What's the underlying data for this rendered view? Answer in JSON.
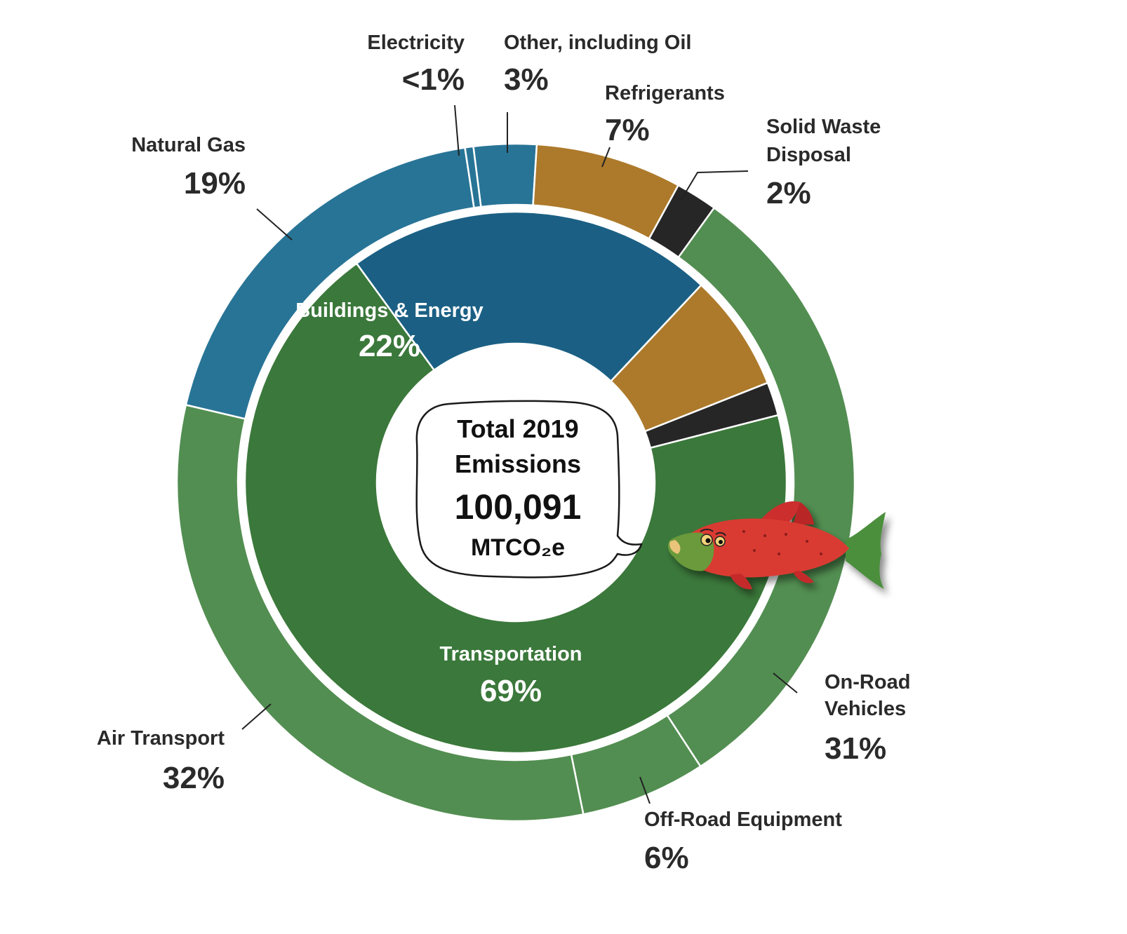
{
  "chart_data": {
    "type": "pie",
    "center_label": {
      "line1": "Total 2019",
      "line2": "Emissions",
      "value": "100,091",
      "unit": "MTCO₂e"
    },
    "inner_ring": [
      {
        "name": "Buildings & Energy",
        "value": 22,
        "label": "22%",
        "color": "#1b6084"
      },
      {
        "name": "",
        "value": 7,
        "label": "",
        "color": "#ad7a2b"
      },
      {
        "name": "",
        "value": 2,
        "label": "",
        "color": "#262626"
      },
      {
        "name": "Transportation",
        "value": 69,
        "label": "69%",
        "color": "#3b783b"
      }
    ],
    "outer_ring": [
      {
        "name": "Other, including Oil",
        "value": 3,
        "label": "3%",
        "color": "#287496"
      },
      {
        "name": "Refrigerants",
        "value": 7,
        "label": "7%",
        "color": "#ad7a2b"
      },
      {
        "name": "Solid Waste Disposal",
        "value": 2,
        "label": "2%",
        "color": "#262626"
      },
      {
        "name": "On-Road Vehicles",
        "value": 31,
        "label": "31%",
        "color": "#528e51"
      },
      {
        "name": "Off-Road Equipment",
        "value": 6,
        "label": "6%",
        "color": "#528e51"
      },
      {
        "name": "Air Transport",
        "value": 32,
        "label": "32%",
        "color": "#528e51"
      },
      {
        "name": "Natural Gas",
        "value": 19,
        "label": "19%",
        "color": "#287496"
      },
      {
        "name": "Electricity",
        "value": 0.4,
        "label": "<1%",
        "color": "#287496"
      }
    ],
    "outer_label_lines": {
      "Solid Waste Disposal": [
        "Solid Waste",
        "Disposal"
      ],
      "On-Road Vehicles": [
        "On-Road",
        "Vehicles"
      ]
    },
    "illustration": "salmon-mascot"
  }
}
